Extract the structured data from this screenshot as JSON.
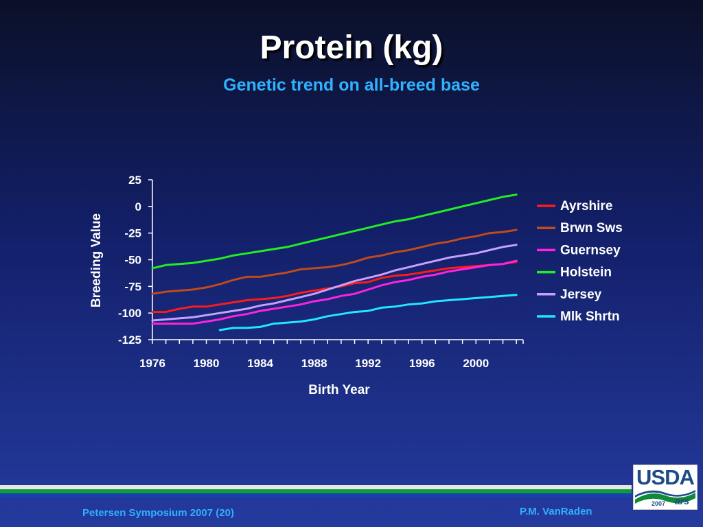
{
  "slide": {
    "title": "Protein (kg)",
    "subtitle": "Genetic trend on all-breed base"
  },
  "footer": {
    "left": "Petersen Symposium 2007 (20)",
    "right": "P.M. VanRaden"
  },
  "logo": {
    "text": "USDA",
    "year": "2007",
    "ars": "ars"
  },
  "colors": {
    "text": "#ffffff",
    "subtitle": "#2fb2ff"
  },
  "chart_data": {
    "type": "line",
    "title": "",
    "xlabel": "Birth Year",
    "ylabel": "Breeding Value",
    "ylim": [
      -125,
      25
    ],
    "yticks": [
      25,
      0,
      -25,
      -50,
      -75,
      -100,
      -125
    ],
    "xlim": [
      1976,
      2003.5
    ],
    "xtick_labels": [
      1976,
      1980,
      1984,
      1988,
      1992,
      1996,
      2000
    ],
    "grid": false,
    "legend_position": "right",
    "x": [
      1976,
      1977,
      1978,
      1979,
      1980,
      1981,
      1982,
      1983,
      1984,
      1985,
      1986,
      1987,
      1988,
      1989,
      1990,
      1991,
      1992,
      1993,
      1994,
      1995,
      1996,
      1997,
      1998,
      1999,
      2000,
      2001,
      2002,
      2003
    ],
    "series": [
      {
        "name": "Ayrshire",
        "color": "#ff1a1a",
        "values": [
          -99,
          -99,
          -96,
          -94,
          -94,
          -92,
          -90,
          -88,
          -87,
          -86,
          -84,
          -81,
          -79,
          -77,
          -75,
          -72,
          -71,
          -67,
          -65,
          -64,
          -62,
          -60,
          -58,
          -57,
          -56,
          -55,
          -54,
          -52
        ]
      },
      {
        "name": "Brwn Sws",
        "color": "#c04a1a",
        "values": [
          -82,
          -80,
          -79,
          -78,
          -76,
          -73,
          -69,
          -66,
          -66,
          -64,
          -62,
          -59,
          -58,
          -57,
          -55,
          -52,
          -48,
          -46,
          -43,
          -41,
          -38,
          -35,
          -33,
          -30,
          -28,
          -25,
          -24,
          -22
        ]
      },
      {
        "name": "Guernsey",
        "color": "#ff22e0",
        "values": [
          -110,
          -110,
          -110,
          -110,
          -108,
          -106,
          -103,
          -101,
          -98,
          -96,
          -94,
          -92,
          -89,
          -87,
          -84,
          -82,
          -78,
          -74,
          -71,
          -69,
          -66,
          -64,
          -61,
          -59,
          -57,
          -55,
          -54,
          -51
        ]
      },
      {
        "name": "Holstein",
        "color": "#22ee22",
        "values": [
          -58,
          -55,
          -54,
          -53,
          -51,
          -49,
          -46,
          -44,
          -42,
          -40,
          -38,
          -35,
          -32,
          -29,
          -26,
          -23,
          -20,
          -17,
          -14,
          -12,
          -9,
          -6,
          -3,
          0,
          3,
          6,
          9,
          11
        ]
      },
      {
        "name": "Jersey",
        "color": "#c8a0ff",
        "values": [
          -107,
          -106,
          -105,
          -104,
          -102,
          -100,
          -98,
          -96,
          -93,
          -91,
          -88,
          -85,
          -82,
          -78,
          -74,
          -70,
          -67,
          -64,
          -60,
          -57,
          -54,
          -51,
          -48,
          -46,
          -44,
          -41,
          -38,
          -36
        ]
      },
      {
        "name": "Mlk Shrtn",
        "color": "#22e6ff",
        "values": [
          null,
          null,
          null,
          null,
          null,
          -116,
          -114,
          -114,
          -113,
          -110,
          -109,
          -108,
          -106,
          -103,
          -101,
          -99,
          -98,
          -95,
          -94,
          -92,
          -91,
          -89,
          -88,
          -87,
          -86,
          -85,
          -84,
          -83
        ]
      }
    ]
  }
}
